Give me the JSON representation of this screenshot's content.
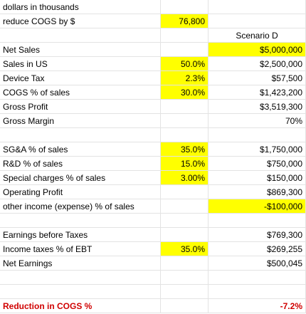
{
  "colors": {
    "highlight": "#ffff00",
    "accent_red": "#d00000"
  },
  "header": {
    "units": "dollars in thousands",
    "reduce_label": "reduce COGS by $",
    "reduce_value": "76,800",
    "scenario": "Scenario D"
  },
  "rows": {
    "net_sales": {
      "label": "Net Sales",
      "value": "$5,000,000"
    },
    "sales_us": {
      "label": "Sales in US",
      "input": "50.0%",
      "value": "$2,500,000"
    },
    "device_tax": {
      "label": "Device Tax",
      "input": "2.3%",
      "value": "$57,500"
    },
    "cogs": {
      "label": "COGS % of sales",
      "input": "30.0%",
      "value": "$1,423,200"
    },
    "gross_profit": {
      "label": "Gross Profit",
      "value": "$3,519,300"
    },
    "gross_margin": {
      "label": "Gross Margin",
      "value": "70%"
    },
    "sga": {
      "label": "SG&A % of sales",
      "input": "35.0%",
      "value": "$1,750,000"
    },
    "rnd": {
      "label": "R&D % of sales",
      "input": "15.0%",
      "value": "$750,000"
    },
    "special": {
      "label": "Special charges % of sales",
      "input": "3.00%",
      "value": "$150,000"
    },
    "operating_profit": {
      "label": "Operating Profit",
      "value": "$869,300"
    },
    "other_income": {
      "label": "other income (expense) % of sales",
      "value": "-$100,000"
    },
    "ebt": {
      "label": "Earnings before Taxes",
      "value": "$769,300"
    },
    "income_tax": {
      "label": "Income taxes % of EBT",
      "input": "35.0%",
      "value": "$269,255"
    },
    "net_earnings": {
      "label": "Net Earnings",
      "value": "$500,045"
    },
    "reduction": {
      "label": "Reduction in COGS %",
      "value": "-7.2%"
    }
  }
}
